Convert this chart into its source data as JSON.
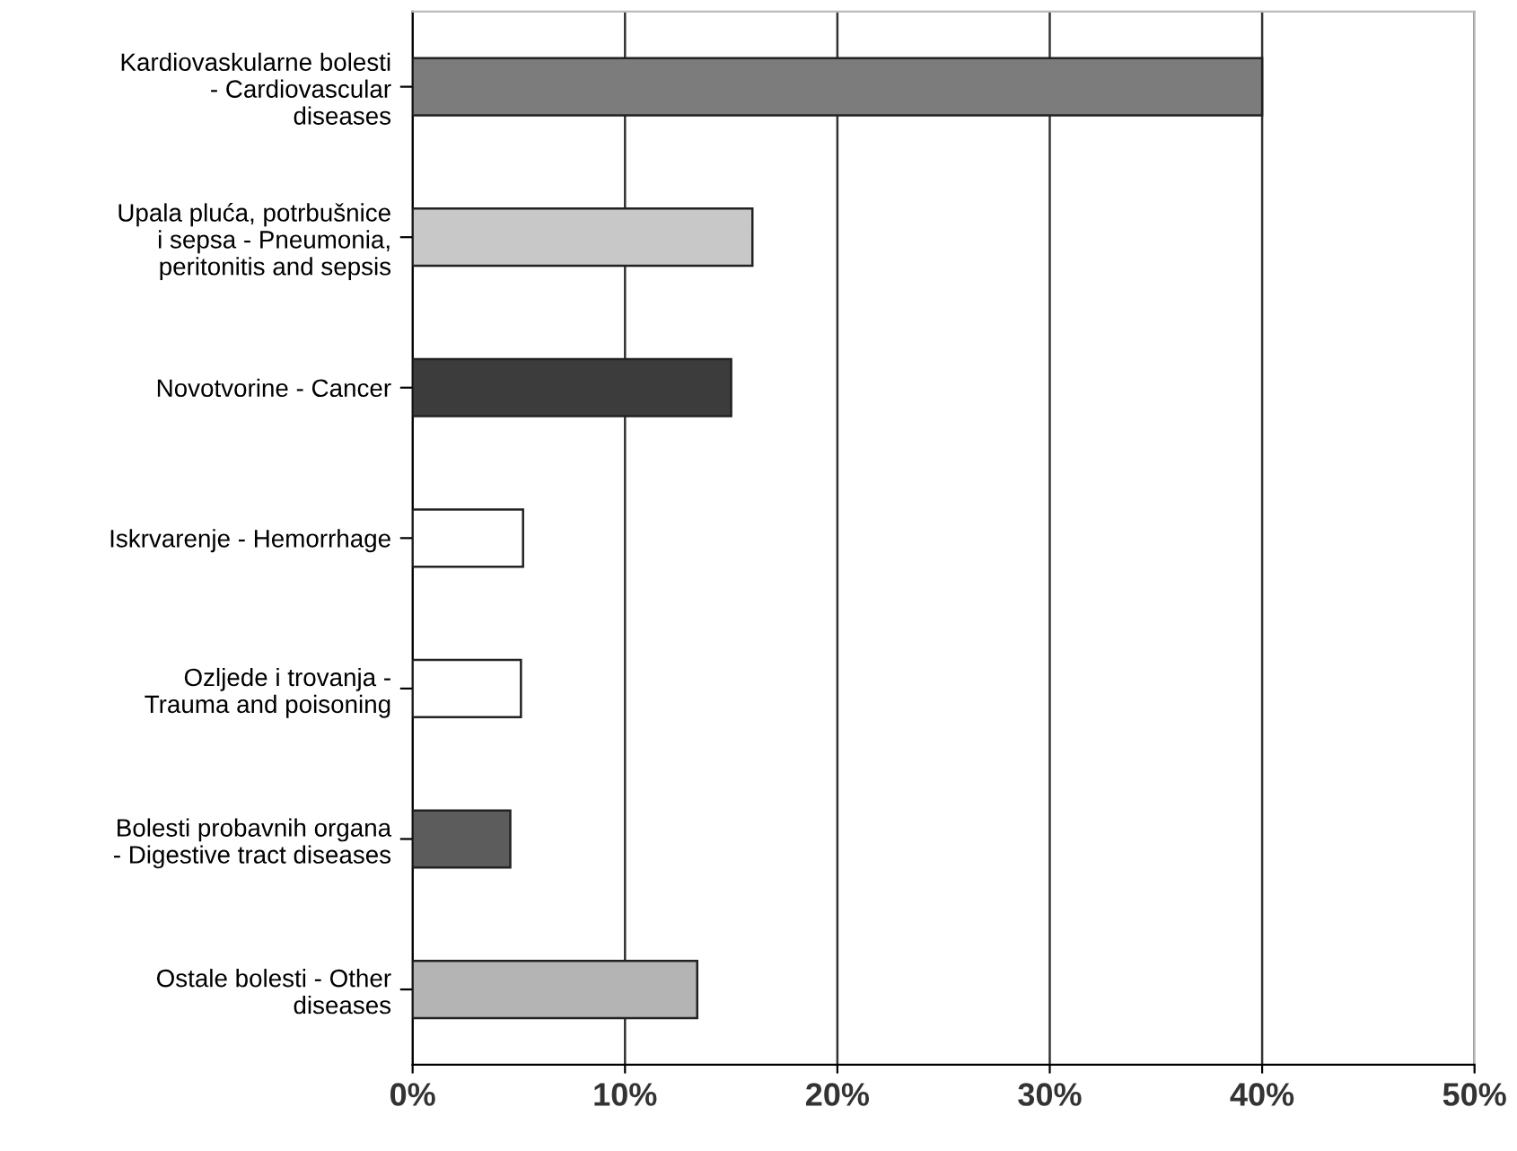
{
  "chart_data": {
    "type": "bar",
    "orientation": "horizontal",
    "categories": [
      "Kardiovaskularne bolesti\n- Cardiovascular\ndiseases",
      "Upala pluća, potrbušnice\ni sepsa - Pneumonia,\nperitonitis and sepsis",
      "Novotvorine - Cancer",
      "Iskrvarenje - Hemorrhage",
      "Ozljede i trovanja -\nTrauma and poisoning",
      "Bolesti probavnih organa\n- Digestive tract diseases",
      "Ostale bolesti - Other\ndiseases"
    ],
    "values": [
      40,
      16,
      15,
      5.2,
      5.1,
      4.6,
      13.4
    ],
    "colors": [
      "#7c7c7c",
      "#c8c8c8",
      "#3c3c3c",
      "#ffffff",
      "#ffffff",
      "#5c5c5c",
      "#b4b4b4"
    ],
    "xlim": [
      0,
      50
    ],
    "xticks": [
      {
        "value": 0,
        "label": "0%"
      },
      {
        "value": 10,
        "label": "10%"
      },
      {
        "value": 20,
        "label": "20%"
      },
      {
        "value": 30,
        "label": "30%"
      },
      {
        "value": 40,
        "label": "40%"
      },
      {
        "value": 50,
        "label": "50%"
      }
    ],
    "grid": "x"
  }
}
